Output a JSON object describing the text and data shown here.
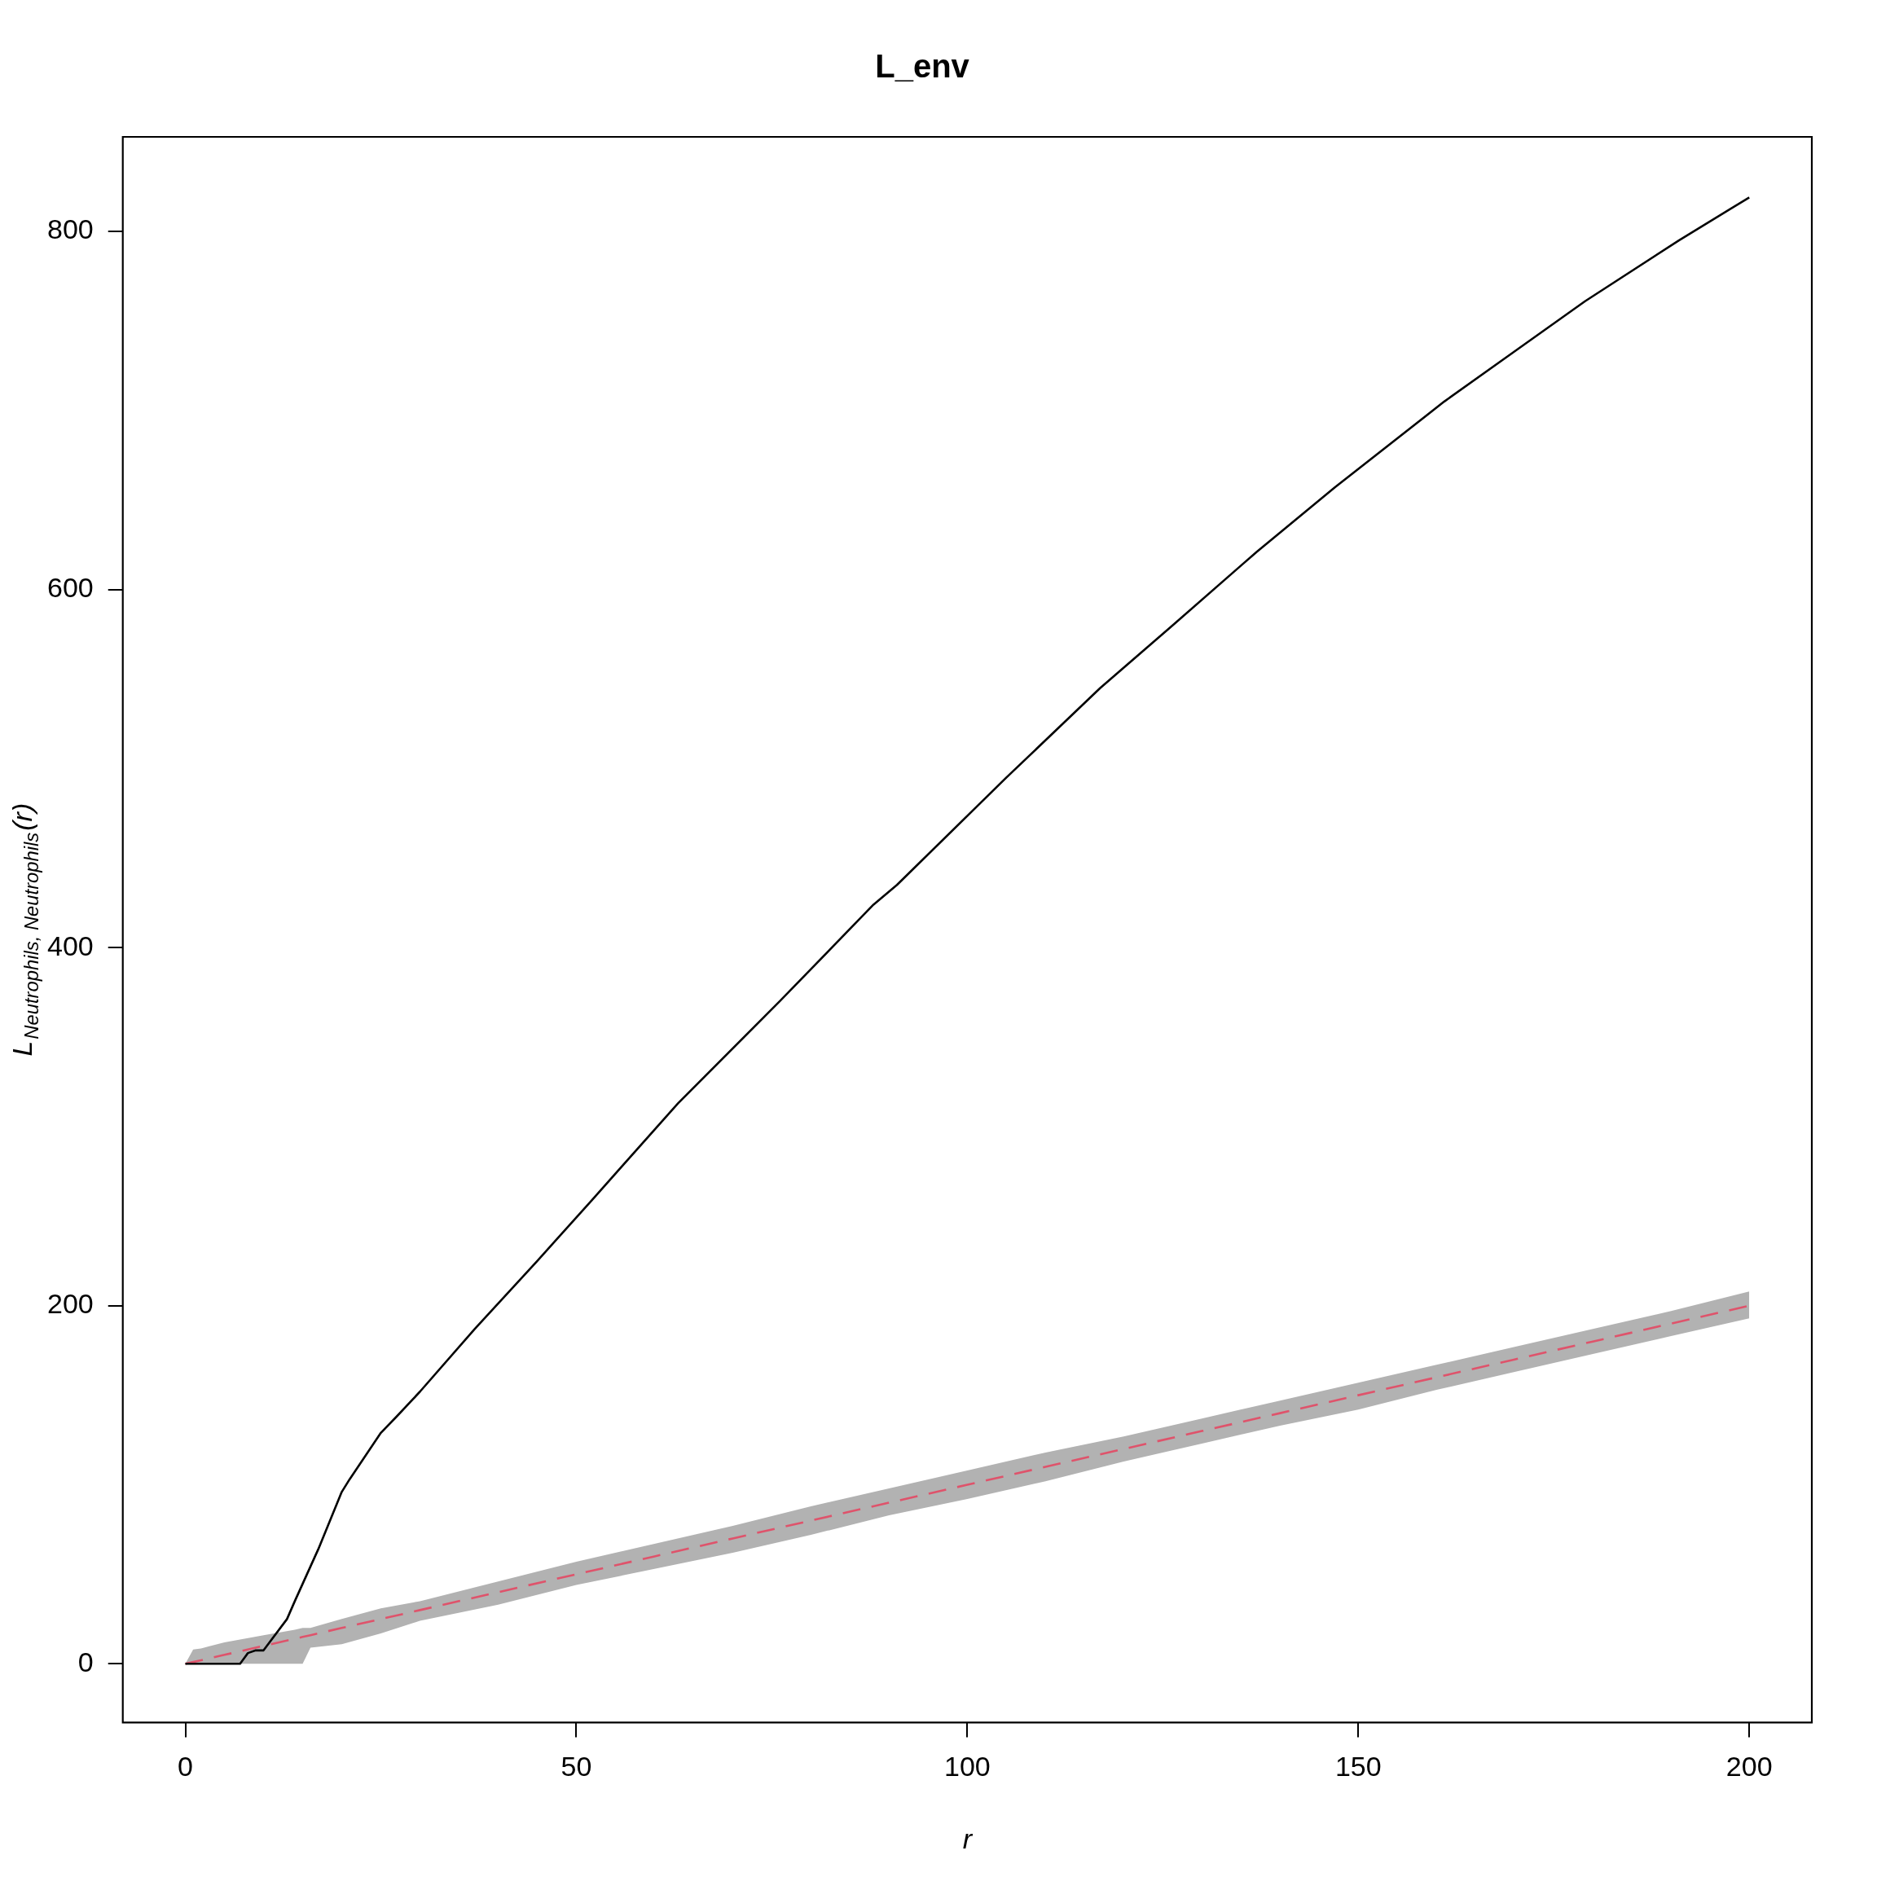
{
  "chart_data": {
    "type": "line",
    "title": "L_env",
    "xlabel": "r",
    "ylabel": "L$_{Neutrophils, Neutrophils}$(r)",
    "xlim": [
      -8,
      208
    ],
    "xticks": [
      0,
      50,
      100,
      150,
      200
    ],
    "ylim": [
      -32.8,
      852.8
    ],
    "yticks": [
      0,
      200,
      400,
      600,
      800
    ],
    "grid": false,
    "legend": false,
    "marker": "none",
    "series": [
      {
        "color": "#000000",
        "line_style": "solid",
        "x": [
          0,
          7,
          8,
          9,
          10,
          13,
          14,
          17,
          20,
          21,
          25,
          27,
          30,
          37,
          45,
          52,
          63,
          76,
          88,
          91,
          105,
          117,
          126,
          137,
          147,
          161,
          170,
          179,
          191,
          200
        ],
        "values": [
          0,
          0,
          6,
          7.5,
          7.5,
          25,
          35,
          64,
          96,
          103,
          129,
          138,
          152,
          187,
          225,
          259,
          313,
          370,
          424,
          435,
          495,
          545,
          579,
          621,
          657,
          705,
          733,
          761,
          795,
          819
        ]
      },
      {
        "color": "#df536b",
        "line_style": "dashed",
        "x": [
          0,
          1,
          2,
          5,
          10,
          14,
          15,
          16,
          20,
          25,
          30,
          40,
          50,
          60,
          70,
          80,
          90,
          100,
          110,
          120,
          130,
          140,
          150,
          160,
          170,
          180,
          190,
          200
        ],
        "values": [
          0,
          1,
          2,
          5,
          10,
          14,
          15,
          16,
          20,
          25,
          30,
          40,
          50,
          60,
          70,
          80,
          90,
          100,
          110,
          120,
          130,
          140,
          150,
          160,
          170,
          180,
          190,
          200
        ],
        "lower": [
          0,
          0,
          0,
          0,
          0,
          0,
          0,
          9,
          11,
          17,
          24,
          33,
          44,
          53,
          62,
          72,
          83,
          92,
          102,
          113,
          123,
          133,
          142,
          153,
          163,
          173,
          183,
          193
        ],
        "upper": [
          0,
          8,
          8.6,
          12,
          16,
          19,
          20,
          20,
          25,
          31,
          35,
          46,
          57,
          67,
          77,
          88,
          98,
          108,
          118,
          127,
          137,
          147,
          157,
          167,
          177,
          187,
          197,
          208
        ]
      }
    ]
  }
}
